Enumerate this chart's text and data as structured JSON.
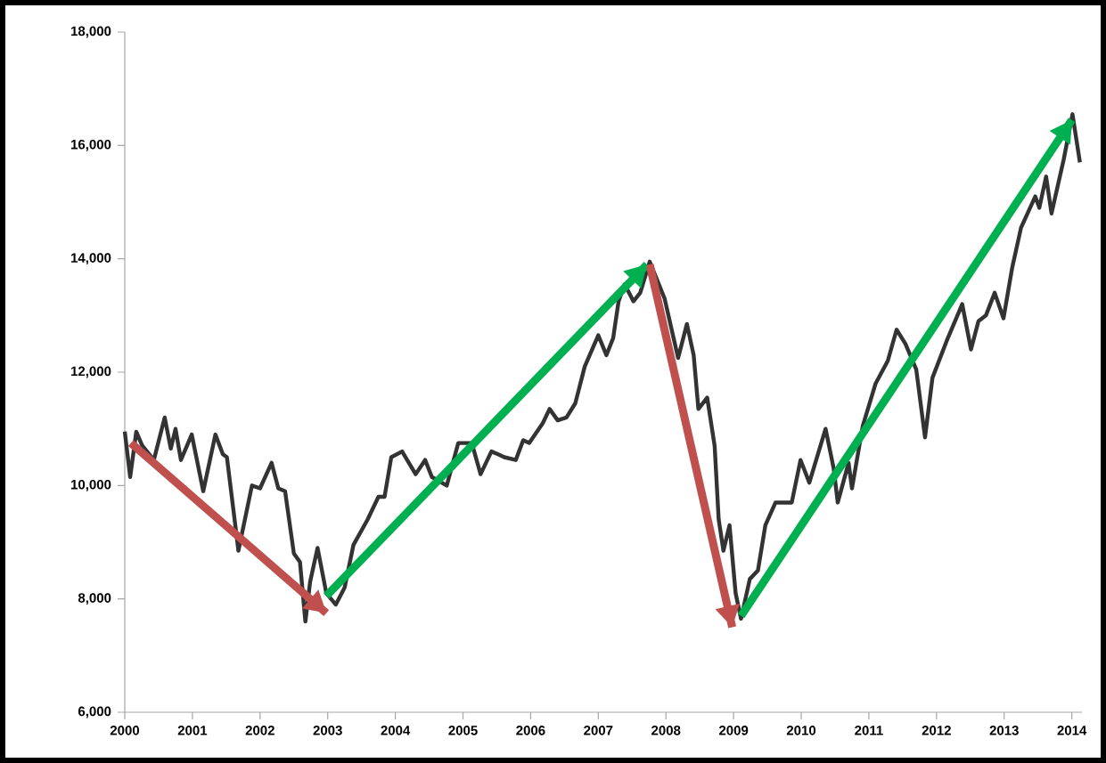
{
  "chart_data": {
    "type": "line",
    "xlim": [
      2000,
      2014.15
    ],
    "ylim": [
      6000,
      18000
    ],
    "xticks": [
      2000,
      2001,
      2002,
      2003,
      2004,
      2005,
      2006,
      2007,
      2008,
      2009,
      2010,
      2011,
      2012,
      2013,
      2014
    ],
    "yticks": [
      {
        "value": 6000,
        "label": "6,000"
      },
      {
        "value": 8000,
        "label": "8,000"
      },
      {
        "value": 10000,
        "label": "10,000"
      },
      {
        "value": 12000,
        "label": "12,000"
      },
      {
        "value": 14000,
        "label": "14,000"
      },
      {
        "value": 16000,
        "label": "16,000"
      },
      {
        "value": 18000,
        "label": "18,000"
      }
    ],
    "grid": false,
    "marker": "none",
    "line_style": "solid",
    "series": [
      {
        "color": "#333333",
        "x": [
          2000.0,
          2000.08,
          2000.17,
          2000.26,
          2000.43,
          2000.59,
          2000.68,
          2000.75,
          2000.83,
          2000.99,
          2001.16,
          2001.34,
          2001.45,
          2001.51,
          2001.68,
          2001.88,
          2002.0,
          2002.17,
          2002.27,
          2002.37,
          2002.5,
          2002.59,
          2002.67,
          2002.74,
          2002.85,
          2002.98,
          2003.12,
          2003.25,
          2003.38,
          2003.59,
          2003.75,
          2003.84,
          2003.94,
          2004.1,
          2004.3,
          2004.44,
          2004.54,
          2004.76,
          2004.93,
          2005.13,
          2005.26,
          2005.42,
          2005.52,
          2005.61,
          2005.78,
          2005.89,
          2005.98,
          2006.18,
          2006.28,
          2006.4,
          2006.53,
          2006.66,
          2006.8,
          2007.0,
          2007.12,
          2007.22,
          2007.3,
          2007.39,
          2007.52,
          2007.62,
          2007.76,
          2007.98,
          2008.18,
          2008.31,
          2008.41,
          2008.48,
          2008.61,
          2008.72,
          2008.78,
          2008.85,
          2008.94,
          2009.03,
          2009.11,
          2009.24,
          2009.36,
          2009.47,
          2009.62,
          2009.86,
          2009.99,
          2010.12,
          2010.36,
          2010.48,
          2010.54,
          2010.7,
          2010.75,
          2010.91,
          2011.1,
          2011.28,
          2011.41,
          2011.54,
          2011.7,
          2011.83,
          2011.94,
          2012.15,
          2012.38,
          2012.51,
          2012.62,
          2012.73,
          2012.86,
          2012.99,
          2013.12,
          2013.25,
          2013.46,
          2013.52,
          2013.62,
          2013.7,
          2013.88,
          2014.01,
          2014.12
        ],
        "values": [
          10950,
          10150,
          10950,
          10700,
          10450,
          11200,
          10650,
          11000,
          10450,
          10900,
          9900,
          10900,
          10550,
          10500,
          8850,
          10000,
          9950,
          10400,
          9950,
          9900,
          8800,
          8650,
          7600,
          8300,
          8900,
          8100,
          7900,
          8200,
          8950,
          9400,
          9800,
          9800,
          10500,
          10600,
          10200,
          10450,
          10150,
          10000,
          10750,
          10750,
          10200,
          10600,
          10550,
          10500,
          10450,
          10800,
          10750,
          11100,
          11350,
          11150,
          11200,
          11450,
          12100,
          12650,
          12300,
          12600,
          13250,
          13550,
          13250,
          13400,
          13950,
          13300,
          12250,
          12850,
          12300,
          11350,
          11550,
          10700,
          9400,
          8850,
          9300,
          8100,
          7650,
          8350,
          8500,
          9300,
          9700,
          9700,
          10450,
          10050,
          11000,
          10300,
          9700,
          10400,
          9950,
          11050,
          11800,
          12200,
          12750,
          12500,
          12050,
          10850,
          11900,
          12550,
          13200,
          12400,
          12900,
          13000,
          13400,
          12950,
          13850,
          14550,
          15100,
          14900,
          15450,
          14800,
          15750,
          16550,
          15700
        ]
      },
      {
        "color": "#c0504d",
        "x": [
          2000.09,
          2002.98
        ],
        "values": [
          10750,
          7750
        ]
      },
      {
        "color": "#00b050",
        "x": [
          2002.98,
          2007.72
        ],
        "values": [
          8050,
          13900
        ]
      },
      {
        "color": "#c0504d",
        "x": [
          2007.76,
          2008.98
        ],
        "values": [
          13900,
          7500
        ]
      },
      {
        "color": "#00b050",
        "x": [
          2009.11,
          2014.0
        ],
        "values": [
          7700,
          16450
        ]
      }
    ]
  }
}
